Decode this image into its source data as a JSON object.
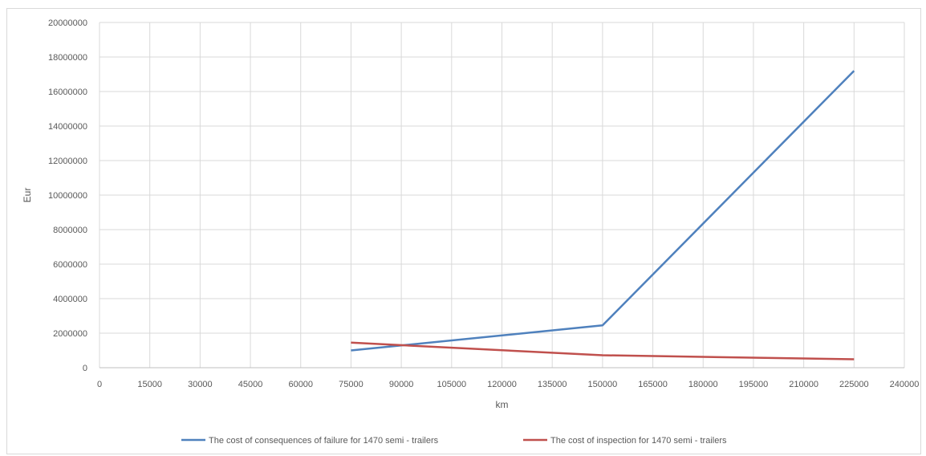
{
  "chart_data": {
    "type": "line",
    "title": "",
    "xlabel": "km",
    "ylabel": "Eur",
    "xlim": [
      0,
      240000
    ],
    "ylim": [
      0,
      20000000
    ],
    "x_ticks": [
      "0",
      "15000",
      "30000",
      "45000",
      "60000",
      "75000",
      "90000",
      "105000",
      "120000",
      "135000",
      "150000",
      "165000",
      "180000",
      "195000",
      "210000",
      "225000",
      "240000"
    ],
    "y_ticks": [
      "0",
      "2000000",
      "4000000",
      "6000000",
      "8000000",
      "10000000",
      "12000000",
      "14000000",
      "16000000",
      "18000000",
      "20000000"
    ],
    "grid": true,
    "legend_position": "bottom",
    "series": [
      {
        "name": "The cost of consequences of failure for 1470 semi - trailers",
        "color": "#4f81bd",
        "x": [
          75000,
          150000,
          225000
        ],
        "y": [
          1000000,
          2450000,
          17200000
        ]
      },
      {
        "name": "The cost of inspection for 1470 semi - trailers",
        "color": "#c0504d",
        "x": [
          75000,
          150000,
          225000
        ],
        "y": [
          1450000,
          720000,
          490000
        ]
      }
    ]
  }
}
